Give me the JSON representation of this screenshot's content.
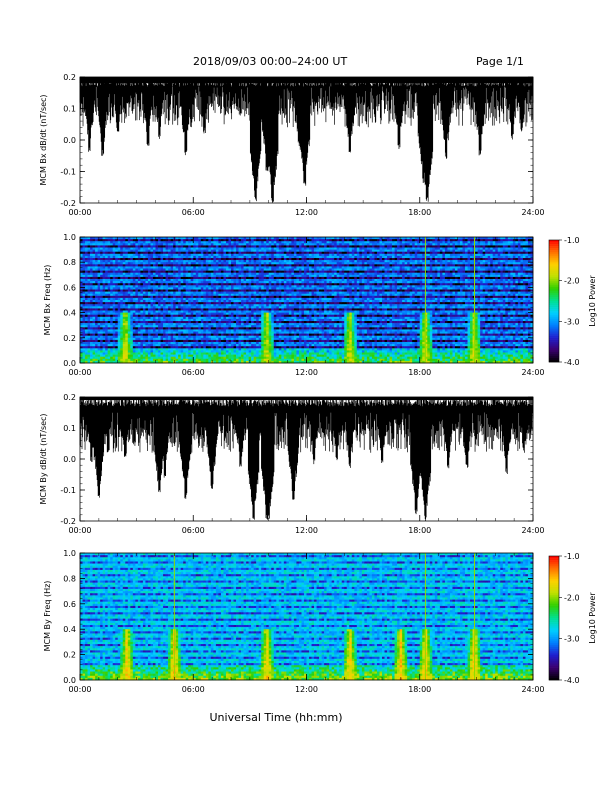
{
  "header": {
    "date": "2018/09/03",
    "time_range": "00:00–24:00 UT",
    "page": "Page 1/1"
  },
  "shared_x": {
    "label": "Universal Time (hh:mm)",
    "ticks": [
      "00:00",
      "06:00",
      "12:00",
      "18:00",
      "24:00"
    ],
    "range_hours": [
      0,
      24
    ]
  },
  "colorbar": {
    "label": "Log10 Power",
    "ticks": [
      -1.0,
      -2.0,
      -3.0,
      -4.0
    ],
    "range": [
      -4.0,
      -1.0
    ],
    "colormap": [
      "#000000",
      "#3b0070",
      "#1e1ecf",
      "#0080ff",
      "#00d0ff",
      "#00e090",
      "#30d000",
      "#c0e000",
      "#ffd000",
      "#ff7000",
      "#ff0000"
    ]
  },
  "chart_data": [
    {
      "id": "bx_timeseries",
      "type": "line",
      "ylabel": "MCM Bx dB/dt (nT/sec)",
      "ylim": [
        -0.2,
        0.2
      ],
      "yticks": [
        "0.2",
        "0.1",
        "0.0",
        "-0.1",
        "-0.2"
      ],
      "xlim": [
        0,
        24
      ],
      "dips": [
        {
          "hour": 0.5,
          "min_value": -0.04
        },
        {
          "hour": 1.2,
          "min_value": -0.05
        },
        {
          "hour": 2.0,
          "min_value": 0.02
        },
        {
          "hour": 3.6,
          "min_value": -0.02
        },
        {
          "hour": 4.2,
          "min_value": 0.0
        },
        {
          "hour": 5.6,
          "min_value": -0.05
        },
        {
          "hour": 6.6,
          "min_value": 0.02
        },
        {
          "hour": 9.3,
          "min_value": -0.2
        },
        {
          "hour": 9.9,
          "min_value": -0.1
        },
        {
          "hour": 10.2,
          "min_value": -0.2
        },
        {
          "hour": 11.6,
          "min_value": -0.02
        },
        {
          "hour": 11.9,
          "min_value": -0.15
        },
        {
          "hour": 14.3,
          "min_value": -0.05
        },
        {
          "hour": 16.9,
          "min_value": -0.03
        },
        {
          "hour": 18.2,
          "min_value": -0.14
        },
        {
          "hour": 18.4,
          "min_value": -0.2
        },
        {
          "hour": 19.4,
          "min_value": -0.06
        },
        {
          "hour": 21.2,
          "min_value": -0.05
        },
        {
          "hour": 22.9,
          "min_value": 0.0
        },
        {
          "hour": 23.4,
          "min_value": 0.02
        }
      ],
      "baseline_top": 0.18,
      "typical_min": 0.12
    },
    {
      "id": "bx_spectrogram",
      "type": "heatmap",
      "ylabel": "MCM Bx Freq (Hz)",
      "ylim": [
        0.0,
        1.0
      ],
      "yticks": [
        "1.0",
        "0.8",
        "0.6",
        "0.4",
        "0.2",
        "0.0"
      ],
      "xlim": [
        0,
        24
      ],
      "background_log_power": -3.7,
      "low_freq_log_power": -2.2,
      "harmonic_lines_hz": [
        0.05,
        0.1,
        0.15,
        0.2,
        0.25,
        0.3,
        0.35,
        0.4,
        0.45,
        0.5,
        0.55,
        0.6,
        0.65,
        0.7,
        0.75,
        0.8,
        0.85,
        0.9,
        0.95,
        1.0
      ],
      "harmonic_log_power": -3.1,
      "event_columns_hour": [
        2.4,
        9.9,
        14.3,
        18.3,
        20.9
      ],
      "vertical_lines_hour": [
        18.3,
        20.9
      ],
      "vertical_line_log_power": -2.0
    },
    {
      "id": "by_timeseries",
      "type": "line",
      "ylabel": "MCM By dB/dt (nT/sec)",
      "ylim": [
        -0.2,
        0.2
      ],
      "yticks": [
        "0.2",
        "0.1",
        "0.0",
        "-0.1",
        "-0.2"
      ],
      "xlim": [
        0,
        24
      ],
      "dips": [
        {
          "hour": 0.6,
          "min_value": -0.01
        },
        {
          "hour": 1.0,
          "min_value": -0.13
        },
        {
          "hour": 1.5,
          "min_value": 0.02
        },
        {
          "hour": 2.4,
          "min_value": 0.0
        },
        {
          "hour": 4.2,
          "min_value": -0.12
        },
        {
          "hour": 4.5,
          "min_value": -0.06
        },
        {
          "hour": 5.6,
          "min_value": -0.13
        },
        {
          "hour": 7.0,
          "min_value": -0.1
        },
        {
          "hour": 8.5,
          "min_value": -0.03
        },
        {
          "hour": 9.2,
          "min_value": -0.2
        },
        {
          "hour": 9.9,
          "min_value": -0.2
        },
        {
          "hour": 10.0,
          "min_value": -0.2
        },
        {
          "hour": 11.3,
          "min_value": -0.14
        },
        {
          "hour": 12.4,
          "min_value": -0.02
        },
        {
          "hour": 13.6,
          "min_value": -0.01
        },
        {
          "hour": 14.3,
          "min_value": -0.03
        },
        {
          "hour": 16.0,
          "min_value": -0.02
        },
        {
          "hour": 17.8,
          "min_value": -0.18
        },
        {
          "hour": 18.3,
          "min_value": -0.2
        },
        {
          "hour": 19.5,
          "min_value": -0.03
        },
        {
          "hour": 20.5,
          "min_value": -0.03
        },
        {
          "hour": 22.6,
          "min_value": -0.05
        },
        {
          "hour": 23.5,
          "min_value": 0.02
        }
      ],
      "baseline_top": 0.19,
      "typical_min": 0.1
    },
    {
      "id": "by_spectrogram",
      "type": "heatmap",
      "ylabel": "MCM By Freq (Hz)",
      "ylim": [
        0.0,
        1.0
      ],
      "yticks": [
        "1.0",
        "0.8",
        "0.6",
        "0.4",
        "0.2",
        "0.0"
      ],
      "xlim": [
        0,
        24
      ],
      "background_log_power": -3.2,
      "low_freq_log_power": -2.0,
      "harmonic_lines_hz": [
        0.05,
        0.1,
        0.15,
        0.2,
        0.25,
        0.3,
        0.35,
        0.4,
        0.45,
        0.5,
        0.55,
        0.6,
        0.65,
        0.7,
        0.75,
        0.8,
        0.85,
        0.9,
        0.95,
        1.0
      ],
      "harmonic_log_power": -2.8,
      "event_columns_hour": [
        2.5,
        5.0,
        9.9,
        14.3,
        17.0,
        18.3,
        20.9
      ],
      "vertical_lines_hour": [
        5.0,
        18.3,
        20.9
      ],
      "vertical_line_log_power": -2.0
    }
  ]
}
